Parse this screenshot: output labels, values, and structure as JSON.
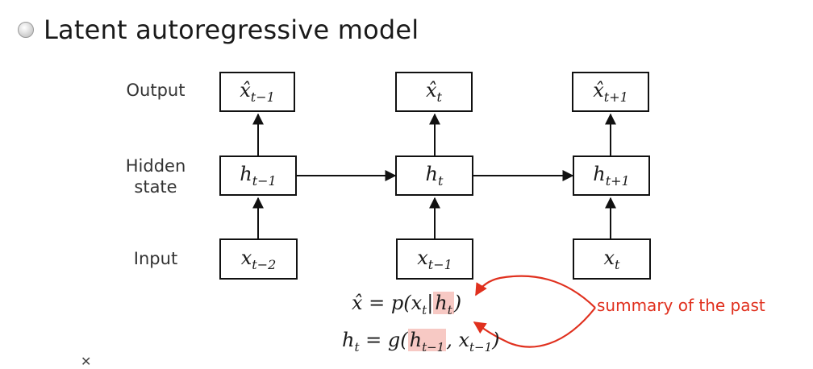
{
  "slide": {
    "title": "Latent autoregressive model",
    "bullet_icon": "radio-bullet-icon"
  },
  "row_labels": {
    "output": "Output",
    "hidden": "Hidden\nstate",
    "input": "Input"
  },
  "nodes": {
    "output": [
      {
        "base": "x̂",
        "sub": "t−1"
      },
      {
        "base": "x̂",
        "sub": "t"
      },
      {
        "base": "x̂",
        "sub": "t+1"
      }
    ],
    "hidden": [
      {
        "base": "h",
        "sub": "t−1"
      },
      {
        "base": "h",
        "sub": "t"
      },
      {
        "base": "h",
        "sub": "t+1"
      }
    ],
    "input": [
      {
        "base": "x",
        "sub": "t−2"
      },
      {
        "base": "x",
        "sub": "t−1"
      },
      {
        "base": "x",
        "sub": "t"
      }
    ]
  },
  "equations": {
    "eq1": {
      "lhs": "x̂ = p(x",
      "lhs_sub": "t",
      "bar": "|",
      "hl": "h",
      "hl_sub": "t",
      "rhs": ")"
    },
    "eq2": {
      "lhs": "h",
      "lhs_sub": "t",
      "mid": " = g(",
      "hl": "h",
      "hl_sub": "t−1",
      "rest": ", x",
      "rest_sub": "t−1",
      "end": ")"
    }
  },
  "annotation": "summary of the past",
  "colors": {
    "accent": "#e0301e",
    "highlight": "#f7c9c4",
    "stroke": "#111111"
  }
}
